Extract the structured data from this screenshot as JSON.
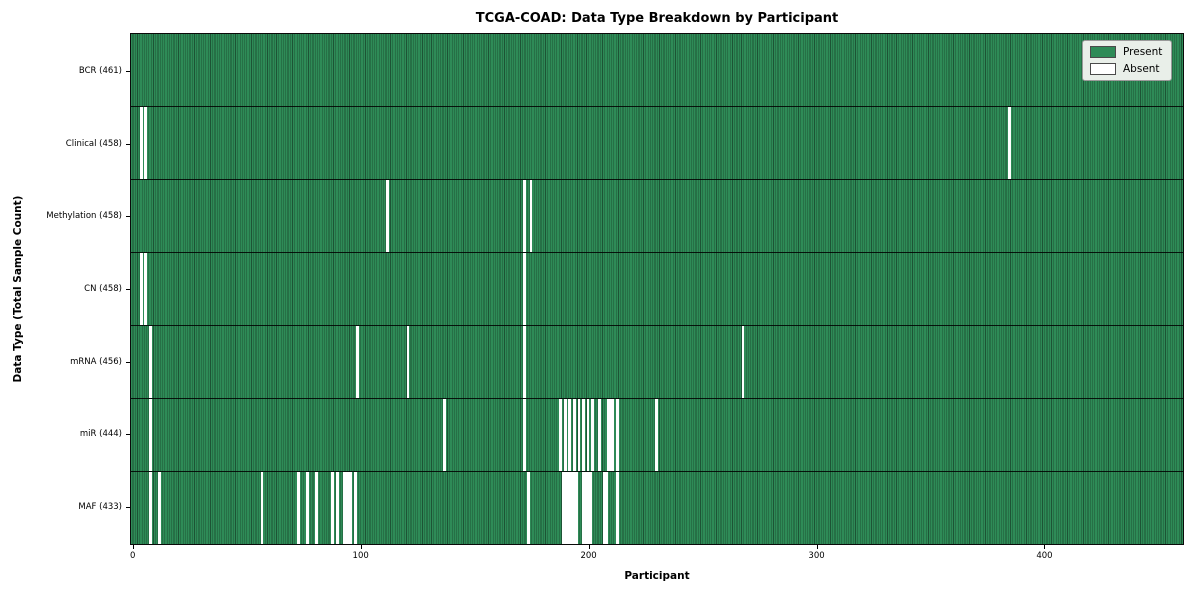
{
  "figure": {
    "title": "TCGA-COAD: Data Type Breakdown by Participant",
    "xlabel": "Participant",
    "ylabel": "Data Type (Total Sample Count)"
  },
  "legend": {
    "present_label": "Present",
    "absent_label": "Absent"
  },
  "colors": {
    "present_fill": "#2e8b57",
    "present_edge": "#1d5435",
    "absent_fill": "#ffffff",
    "row_separator": "rgba(0,0,0,0.85)",
    "legend_bg": "#e9efe9"
  },
  "chart_data": {
    "type": "heatmap",
    "title": "TCGA-COAD: Data Type Breakdown by Participant",
    "xlabel": "Participant",
    "ylabel": "Data Type (Total Sample Count)",
    "n_participants": 461,
    "x_ticks": [
      0,
      100,
      200,
      300,
      400
    ],
    "legend_entries": [
      "Present",
      "Absent"
    ],
    "legend_position": "upper right",
    "grid": false,
    "rows": [
      {
        "name": "BCR",
        "label": "BCR (461)",
        "present_count": 461,
        "absent_participants": []
      },
      {
        "name": "Clinical",
        "label": "Clinical (458)",
        "present_count": 458,
        "absent_participants": [
          4,
          6,
          385
        ]
      },
      {
        "name": "Methylation",
        "label": "Methylation (458)",
        "present_count": 458,
        "absent_participants": [
          112,
          172,
          175
        ]
      },
      {
        "name": "CN",
        "label": "CN (458)",
        "present_count": 458,
        "absent_participants": [
          4,
          6,
          172
        ]
      },
      {
        "name": "mRNA",
        "label": "mRNA (456)",
        "present_count": 456,
        "absent_participants": [
          8,
          99,
          121,
          172,
          268
        ]
      },
      {
        "name": "miR",
        "label": "miR (444)",
        "present_count": 444,
        "absent_participants": [
          8,
          137,
          172,
          188,
          190,
          192,
          194,
          196,
          198,
          200,
          202,
          205,
          209,
          210,
          211,
          213,
          230
        ]
      },
      {
        "name": "MAF",
        "label": "MAF (433)",
        "present_count": 433,
        "absent_participants": [
          8,
          12,
          57,
          73,
          77,
          81,
          88,
          90,
          93,
          94,
          95,
          96,
          98,
          174,
          189,
          190,
          191,
          192,
          193,
          194,
          195,
          198,
          199,
          200,
          201,
          207,
          208,
          213
        ]
      }
    ]
  }
}
